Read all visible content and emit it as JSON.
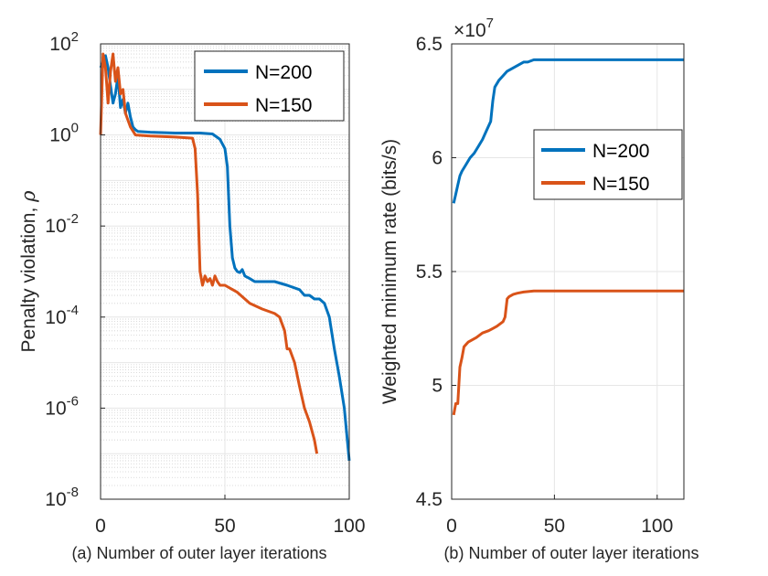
{
  "chart_data": [
    {
      "type": "line",
      "yscale": "log",
      "title": "",
      "xlabel": "",
      "ylabel": "Penalty violation, ",
      "ylabel_symbol": "ρ",
      "caption": "(a) Number of outer layer iterations",
      "xlim": [
        0,
        100
      ],
      "ylim_exp": [
        -8,
        2
      ],
      "xticks": [
        "0",
        "50",
        "100"
      ],
      "ytick_base": "10",
      "yticks": [
        "-8",
        "-6",
        "-4",
        "-2",
        "0",
        "2"
      ],
      "legend_position": "top-right",
      "series": [
        {
          "name": "N=200",
          "color": "#0072BD",
          "x": [
            0,
            1,
            2,
            3,
            4,
            5,
            6,
            7,
            8,
            9,
            10,
            11,
            12,
            13,
            14,
            15,
            20,
            30,
            40,
            45,
            48,
            50,
            51,
            52,
            53,
            54,
            55,
            56,
            57,
            58,
            60,
            62,
            65,
            70,
            75,
            80,
            82,
            84,
            86,
            88,
            90,
            92,
            94,
            96,
            98,
            100
          ],
          "y": [
            30,
            40,
            55,
            30,
            12,
            5,
            8,
            20,
            4,
            6,
            3,
            5,
            2.5,
            1.5,
            1.3,
            1.2,
            1.15,
            1.1,
            1.1,
            1.05,
            0.8,
            0.5,
            0.2,
            0.01,
            0.002,
            0.0012,
            0.001,
            0.00095,
            0.0011,
            0.0008,
            0.0007,
            0.0006,
            0.0006,
            0.0006,
            0.0005,
            0.0004,
            0.0003,
            0.0003,
            0.00025,
            0.00025,
            0.0002,
            0.0001,
            2e-05,
            5e-06,
            1e-06,
            7e-08
          ]
        },
        {
          "name": "N=150",
          "color": "#D95319",
          "x": [
            0,
            1,
            2,
            3,
            4,
            5,
            6,
            7,
            8,
            9,
            10,
            12,
            14,
            20,
            30,
            37,
            38,
            39,
            40,
            41,
            42,
            43,
            44,
            45,
            46,
            47,
            48,
            50,
            55,
            60,
            65,
            70,
            72,
            74,
            75,
            76,
            78,
            80,
            82,
            84,
            86,
            87
          ],
          "y": [
            1,
            60,
            30,
            5,
            25,
            60,
            15,
            30,
            8,
            10,
            3,
            1.5,
            1,
            0.95,
            0.9,
            0.85,
            0.5,
            0.05,
            0.001,
            0.0005,
            0.0008,
            0.0006,
            0.0007,
            0.0005,
            0.0008,
            0.0006,
            0.0005,
            0.0005,
            0.00035,
            0.0002,
            0.00015,
            0.00012,
            0.0001,
            5e-05,
            2e-05,
            2e-05,
            1e-05,
            3e-06,
            1e-06,
            5e-07,
            2e-07,
            1e-07
          ]
        }
      ]
    },
    {
      "type": "line",
      "title": "",
      "xlabel": "",
      "ylabel": "Weighted minimum rate (bits/s)",
      "caption": "(b) Number of outer layer iterations",
      "multiplier": "×10",
      "multiplier_exp": "7",
      "xlim": [
        0,
        113
      ],
      "ylim": [
        4.5,
        6.5
      ],
      "xticks": [
        "0",
        "50",
        "100"
      ],
      "yticks": [
        "4.5",
        "5",
        "5.5",
        "6",
        "6.5"
      ],
      "legend_position": "center-right",
      "series": [
        {
          "name": "N=200",
          "color": "#0072BD",
          "x": [
            1,
            2,
            3,
            4,
            5,
            7,
            9,
            11,
            13,
            15,
            17,
            19,
            20,
            21,
            23,
            25,
            27,
            29,
            31,
            33,
            35,
            37,
            40,
            45,
            50,
            60,
            80,
            100,
            113
          ],
          "y": [
            5.8,
            5.84,
            5.88,
            5.92,
            5.94,
            5.97,
            6.0,
            6.02,
            6.05,
            6.08,
            6.12,
            6.16,
            6.25,
            6.31,
            6.34,
            6.36,
            6.38,
            6.39,
            6.4,
            6.41,
            6.42,
            6.42,
            6.43,
            6.43,
            6.43,
            6.43,
            6.43,
            6.43,
            6.43
          ]
        },
        {
          "name": "N=150",
          "color": "#D95319",
          "x": [
            1,
            2,
            3,
            4,
            5,
            6,
            8,
            10,
            12,
            15,
            18,
            20,
            22,
            25,
            26,
            27,
            28,
            30,
            32,
            35,
            40,
            50,
            60,
            80,
            100,
            113
          ],
          "y": [
            4.87,
            4.92,
            4.92,
            5.08,
            5.12,
            5.17,
            5.19,
            5.2,
            5.21,
            5.23,
            5.24,
            5.25,
            5.26,
            5.28,
            5.3,
            5.38,
            5.39,
            5.4,
            5.405,
            5.41,
            5.415,
            5.415,
            5.415,
            5.415,
            5.415,
            5.415
          ]
        }
      ]
    }
  ]
}
